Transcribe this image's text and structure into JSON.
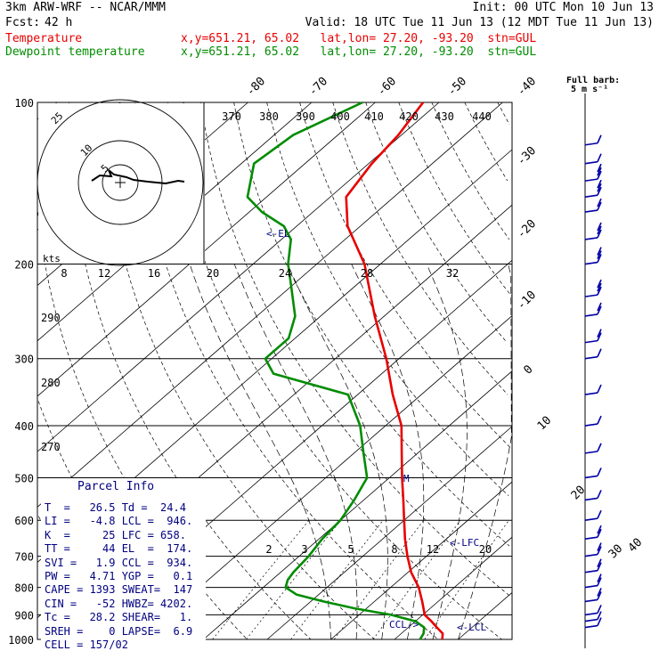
{
  "header": {
    "model": "3km ARW-WRF -- NCAR/MMM",
    "init": "Init: 00 UTC Mon 10 Jun 13",
    "fcst_label": "Fcst:",
    "fcst_value": "42 h",
    "valid": "Valid: 18 UTC Tue 11 Jun 13 (12 MDT Tue 11 Jun 13)",
    "temp_label": "Temperature",
    "temp_info": "x,y=651.21, 65.02   lat,lon= 27.20, -93.20  stn=GUL",
    "dew_label": "Dewpoint temperature",
    "dew_info": "x,y=651.21, 65.02   lat,lon= 27.20, -93.20  stn=GUL",
    "barb_key_1": "Full barb:",
    "barb_key_2": "5 m s⁻¹"
  },
  "parcel_info": {
    "title": "Parcel Info",
    "rows": [
      "T  =   26.5 Td =  24.4",
      "LI =   -4.8 LCL =  946.",
      "K  =     25 LFC = 658.",
      "TT =     44 EL  =  174.",
      "SVI =   1.9 CCL =  934.",
      "PW =   4.71 YGP =   0.1",
      "CAPE = 1393 SWEAT=  147",
      "CIN =   -52 HWBZ= 4202.",
      "Tc =   28.2 SHEAR=   1.",
      "SREH =    0 LAPSE=  6.9",
      "CELL = 157/02"
    ]
  },
  "chart_data": {
    "type": "line",
    "title": "",
    "ylabel": "",
    "y_axis": "pressure (hPa), logarithmic, decreasing upward",
    "ylim": [
      1000,
      100
    ],
    "pressure_levels": [
      100,
      200,
      300,
      400,
      500,
      600,
      700,
      800,
      900,
      1000
    ],
    "pressure_tick_labels": [
      "100",
      "200",
      "300",
      "400",
      "500",
      "600",
      "700",
      "800",
      "900",
      "1000"
    ],
    "isotherm_labels": [
      "-80",
      "-70",
      "-60",
      "-50",
      "-40",
      "-30",
      "-20",
      "-10",
      "0",
      "10",
      "20",
      "30",
      "40"
    ],
    "theta_e_labels": [
      "370",
      "380",
      "390",
      "400",
      "410",
      "420",
      "430",
      "440"
    ],
    "mixing_ratio_labels": [
      "2",
      "3",
      "5",
      "8",
      "12",
      "20"
    ],
    "left_side_labels": [
      "290",
      "280",
      "270"
    ],
    "series": [
      {
        "name": "Temperature",
        "color": "#e80000",
        "p": [
          1000,
          975,
          950,
          925,
          900,
          850,
          800,
          750,
          700,
          650,
          600,
          550,
          500,
          450,
          400,
          350,
          300,
          250,
          200,
          170,
          150,
          130,
          115,
          100
        ],
        "t": [
          27.5,
          26.5,
          24.5,
          22.5,
          20.3,
          17.5,
          14.4,
          10.5,
          7,
          3.5,
          0,
          -3.8,
          -8,
          -12.5,
          -17.5,
          -24.5,
          -32,
          -41.5,
          -52.5,
          -62,
          -67.5,
          -69.5,
          -70.5,
          -72.5
        ]
      },
      {
        "name": "Dewpoint temperature",
        "color": "#008c00",
        "p": [
          1000,
          975,
          950,
          925,
          900,
          875,
          850,
          825,
          800,
          775,
          750,
          700,
          650,
          600,
          550,
          500,
          450,
          400,
          350,
          320,
          300,
          275,
          250,
          220,
          200,
          180,
          170,
          160,
          150,
          130,
          115,
          100
        ],
        "t": [
          24,
          23.5,
          22.5,
          20,
          15,
          8,
          2,
          -3.5,
          -6.5,
          -7.5,
          -8,
          -8.5,
          -9.5,
          -10,
          -11.5,
          -13.5,
          -18.5,
          -24,
          -31.5,
          -47,
          -51,
          -51,
          -54,
          -60,
          -64.5,
          -68.5,
          -72,
          -78,
          -83,
          -88,
          -87,
          -82
        ]
      }
    ],
    "levels_marked": [
      {
        "label": "<-EL",
        "p": 174
      },
      {
        "label": "<-LFC",
        "p": 658
      },
      {
        "label": "<-LCL",
        "p": 946
      },
      {
        "label": "CCL->",
        "p": 934
      }
    ],
    "wind_profile": {
      "p": [
        950,
        925,
        900,
        850,
        800,
        750,
        700,
        650,
        600,
        550,
        500,
        450,
        400,
        350,
        300,
        280,
        250,
        230,
        200,
        180,
        160,
        150,
        140,
        130,
        120
      ],
      "speed_ms": [
        5,
        5,
        5,
        10,
        10,
        10,
        10,
        10,
        5,
        5,
        5,
        5,
        5,
        5,
        5,
        10,
        10,
        15,
        15,
        15,
        10,
        15,
        15,
        5,
        5
      ]
    },
    "hodograph": {
      "speed_ring_labels": [
        "2",
        "8",
        "12",
        "16",
        "20",
        "24",
        "28",
        "32"
      ],
      "units_label": "kts",
      "ring_labels_top": [
        "25",
        "10",
        "5"
      ]
    }
  }
}
